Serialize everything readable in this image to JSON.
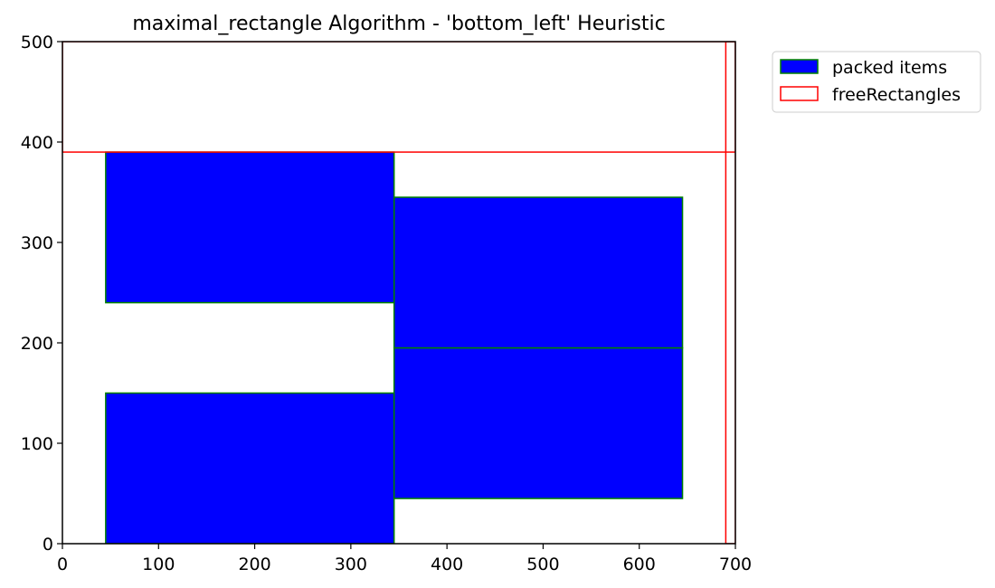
{
  "chart_data": {
    "type": "bar",
    "title": "maximal_rectangle Algorithm - 'bottom_left' Heuristic",
    "xlabel": "",
    "ylabel": "",
    "xlim": [
      0,
      700
    ],
    "ylim": [
      0,
      500
    ],
    "xticks": [
      0,
      100,
      200,
      300,
      400,
      500,
      600,
      700
    ],
    "yticks": [
      0,
      100,
      200,
      300,
      400,
      500
    ],
    "grid": false,
    "legend": {
      "placement": "outside-top-right",
      "entries": [
        {
          "label": "packed items",
          "style": "filled"
        },
        {
          "label": "freeRectangles",
          "style": "outline"
        }
      ]
    },
    "series": [
      {
        "name": "packed items",
        "color": "#0000ff",
        "edgecolor": "#008000",
        "rectangles": [
          {
            "x": 45,
            "y": 0,
            "width": 300,
            "height": 150
          },
          {
            "x": 345,
            "y": 45,
            "width": 300,
            "height": 150
          },
          {
            "x": 345,
            "y": 195,
            "width": 300,
            "height": 150
          },
          {
            "x": 45,
            "y": 240,
            "width": 300,
            "height": 150
          }
        ]
      },
      {
        "name": "freeRectangles",
        "color": "#ff0000",
        "rectangles": [
          {
            "x": 0,
            "y": 390,
            "width": 700,
            "height": 110
          },
          {
            "x": 690,
            "y": 0,
            "width": 10,
            "height": 500
          }
        ]
      }
    ]
  }
}
